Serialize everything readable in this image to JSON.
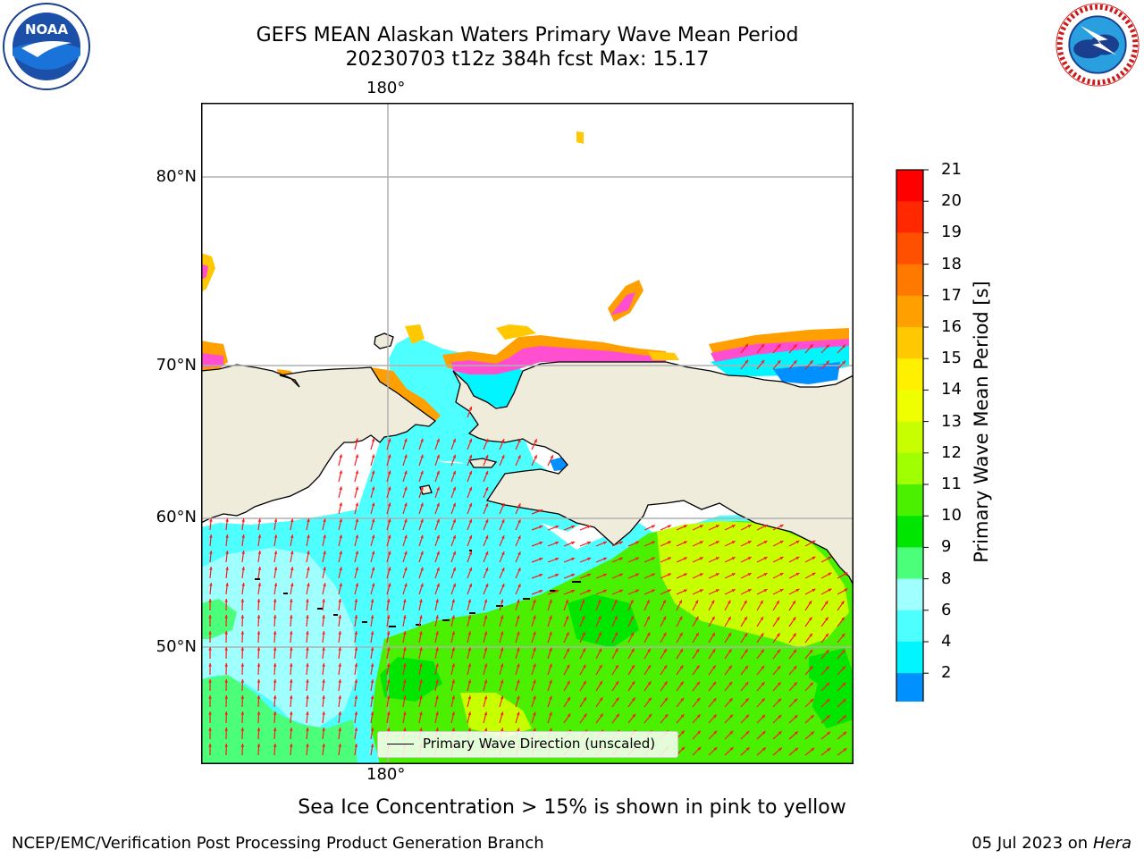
{
  "header": {
    "title_line1": "GEFS MEAN Alaskan Waters Primary Wave Mean Period",
    "title_line2": "20230703 t12z 384h fcst   Max: 15.17"
  },
  "logos": {
    "left": "NOAA",
    "right": "NATIONAL WEATHER SERVICE"
  },
  "map": {
    "lon_label_top": "180°",
    "lon_label_bottom": "180°",
    "lat_labels": [
      "80°N",
      "70°N",
      "60°N",
      "50°N"
    ],
    "legend_label": "Primary Wave Direction (unscaled)",
    "colors": {
      "land": "#efecdc",
      "coast": "#000000",
      "grid": "#b0b0b0",
      "arrows": "#ff1a1a"
    }
  },
  "colorbar": {
    "label": "Primary Wave Mean Period [s]",
    "ticks": [
      "21",
      "20",
      "19",
      "18",
      "17",
      "16",
      "15",
      "14",
      "13",
      "12",
      "11",
      "10",
      "9",
      "8",
      "6",
      "4",
      "2"
    ],
    "colors": [
      "#ff0000",
      "#ff2800",
      "#ff5000",
      "#ff7800",
      "#ff9f00",
      "#ffc800",
      "#fff000",
      "#f0ff00",
      "#c8ff00",
      "#a0ff00",
      "#4bf000",
      "#00e600",
      "#4cff7a",
      "#a0ffff",
      "#4dffff",
      "#00f5ff",
      "#0090ff"
    ],
    "under_color": "#0000ff"
  },
  "footer": {
    "note": "Sea Ice Concentration > 15% is shown in pink to yellow",
    "credit": "NCEP/EMC/Verification Post Processing Product Generation Branch",
    "date": "05 Jul 2023 on ",
    "machine": "Hera"
  }
}
